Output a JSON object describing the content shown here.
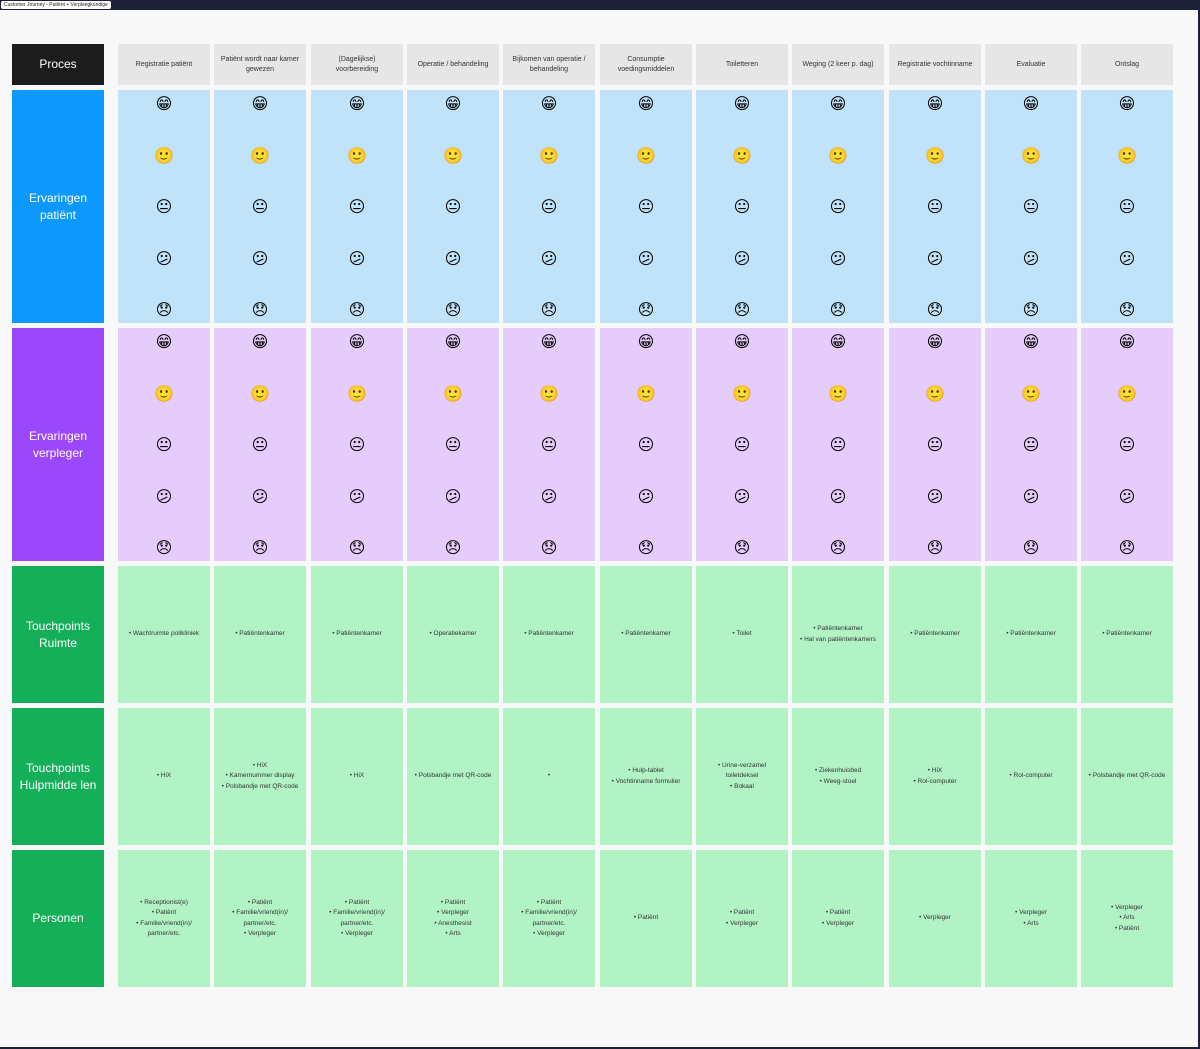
{
  "frame_title": "Customer Journey - Patiënt + Verpleegkundige",
  "colors": {
    "proces": "#1c1c1c",
    "ervaringen_patient": "#0c98fc",
    "ervaringen_verpleger": "#9b47fc",
    "touchpoints": "#15af5a",
    "blue_cell": "#c0e3fa",
    "purple_cell": "#e6ccfb",
    "green_cell": "#b1f3c5",
    "header_cell": "#e6e6e6"
  },
  "row_labels": {
    "proces": "Proces",
    "ervaringen_patient": "Ervaringen patiënt",
    "ervaringen_verpleger": "Ervaringen verpleger",
    "touchpoints_ruimte": "Touchpoints Ruimte",
    "touchpoints_hulpmiddelen": "Touchpoints Hulpmidde len",
    "personen": "Personen"
  },
  "emoji_scale": [
    "😁",
    "🙂",
    "😐",
    "😕",
    "😞"
  ],
  "emoji_names": [
    "grinning-face-icon",
    "slightly-smiling-face-icon",
    "neutral-face-icon",
    "confused-face-icon",
    "disappointed-face-icon"
  ],
  "columns": [
    {
      "proces": "Registratie patiënt",
      "ruimte": [
        "Wachtruimte polikliniek"
      ],
      "hulpmiddelen": [
        "HiX"
      ],
      "personen": [
        "Receptionist(e)",
        "Patiënt",
        "Familie/vriend(in)/ partner/etc."
      ]
    },
    {
      "proces": "Patiënt wordt naar kamer gewezen",
      "ruimte": [
        "Patiëntenkamer"
      ],
      "hulpmiddelen": [
        "HiX",
        "Kamernummer display",
        "Polsbandje met QR-code"
      ],
      "personen": [
        "Patiënt",
        "Familie/vriend(in)/ partner/etc.",
        "Verpleger"
      ]
    },
    {
      "proces": "(Dagelijkse) voorbereiding",
      "ruimte": [
        "Patiëntenkamer"
      ],
      "hulpmiddelen": [
        "HiX"
      ],
      "personen": [
        "Patiënt",
        "Familie/vriend(in)/ partner/etc.",
        "Verpleger"
      ]
    },
    {
      "proces": "Operatie / behandeling",
      "ruimte": [
        "Operatiekamer"
      ],
      "hulpmiddelen": [
        "Polsbandje met QR-code"
      ],
      "personen": [
        "Patiënt",
        "Verpleger",
        "Anesthesist",
        "Arts"
      ]
    },
    {
      "proces": "Bijkomen van operatie / behandeling",
      "ruimte": [
        "Patiëntenkamer"
      ],
      "hulpmiddelen": [
        ""
      ],
      "personen": [
        "Patiënt",
        "Familie/vriend(in)/ partner/etc.",
        "Verpleger"
      ]
    },
    {
      "proces": "Consumptie voedingsmiddelen",
      "ruimte": [
        "Patiëntenkamer"
      ],
      "hulpmiddelen": [
        "Hulp-tablet",
        "Vochtinname formulier"
      ],
      "personen": [
        "Patiënt"
      ]
    },
    {
      "proces": "Toiletteren",
      "ruimte": [
        "Toilet"
      ],
      "hulpmiddelen": [
        "Urine-verzamel toiletdeksel",
        "Bokaal"
      ],
      "personen": [
        "Patiënt",
        "Verpleger"
      ]
    },
    {
      "proces": "Weging (2 keer p. dag)",
      "ruimte": [
        "Patiëntenkamer",
        "Hal van patiëntenkamers"
      ],
      "hulpmiddelen": [
        "Ziekenhuisbed",
        "Weeg-stoel"
      ],
      "personen": [
        "Patiënt",
        "Verpleger"
      ]
    },
    {
      "proces": "Registratie vochtinname",
      "ruimte": [
        "Patiëntenkamer"
      ],
      "hulpmiddelen": [
        "HiX",
        "Rol-computer"
      ],
      "personen": [
        "Verpleger"
      ]
    },
    {
      "proces": "Evaluatie",
      "ruimte": [
        "Patiëntenkamer"
      ],
      "hulpmiddelen": [
        "Rol-computer"
      ],
      "personen": [
        "Verpleger",
        "Arts"
      ]
    },
    {
      "proces": "Ontslag",
      "ruimte": [
        "Patiëntenkamer"
      ],
      "hulpmiddelen": [
        "Polsbandje met QR-code"
      ],
      "personen": [
        "Verpleger",
        "Arts",
        "Patiënt"
      ]
    }
  ]
}
